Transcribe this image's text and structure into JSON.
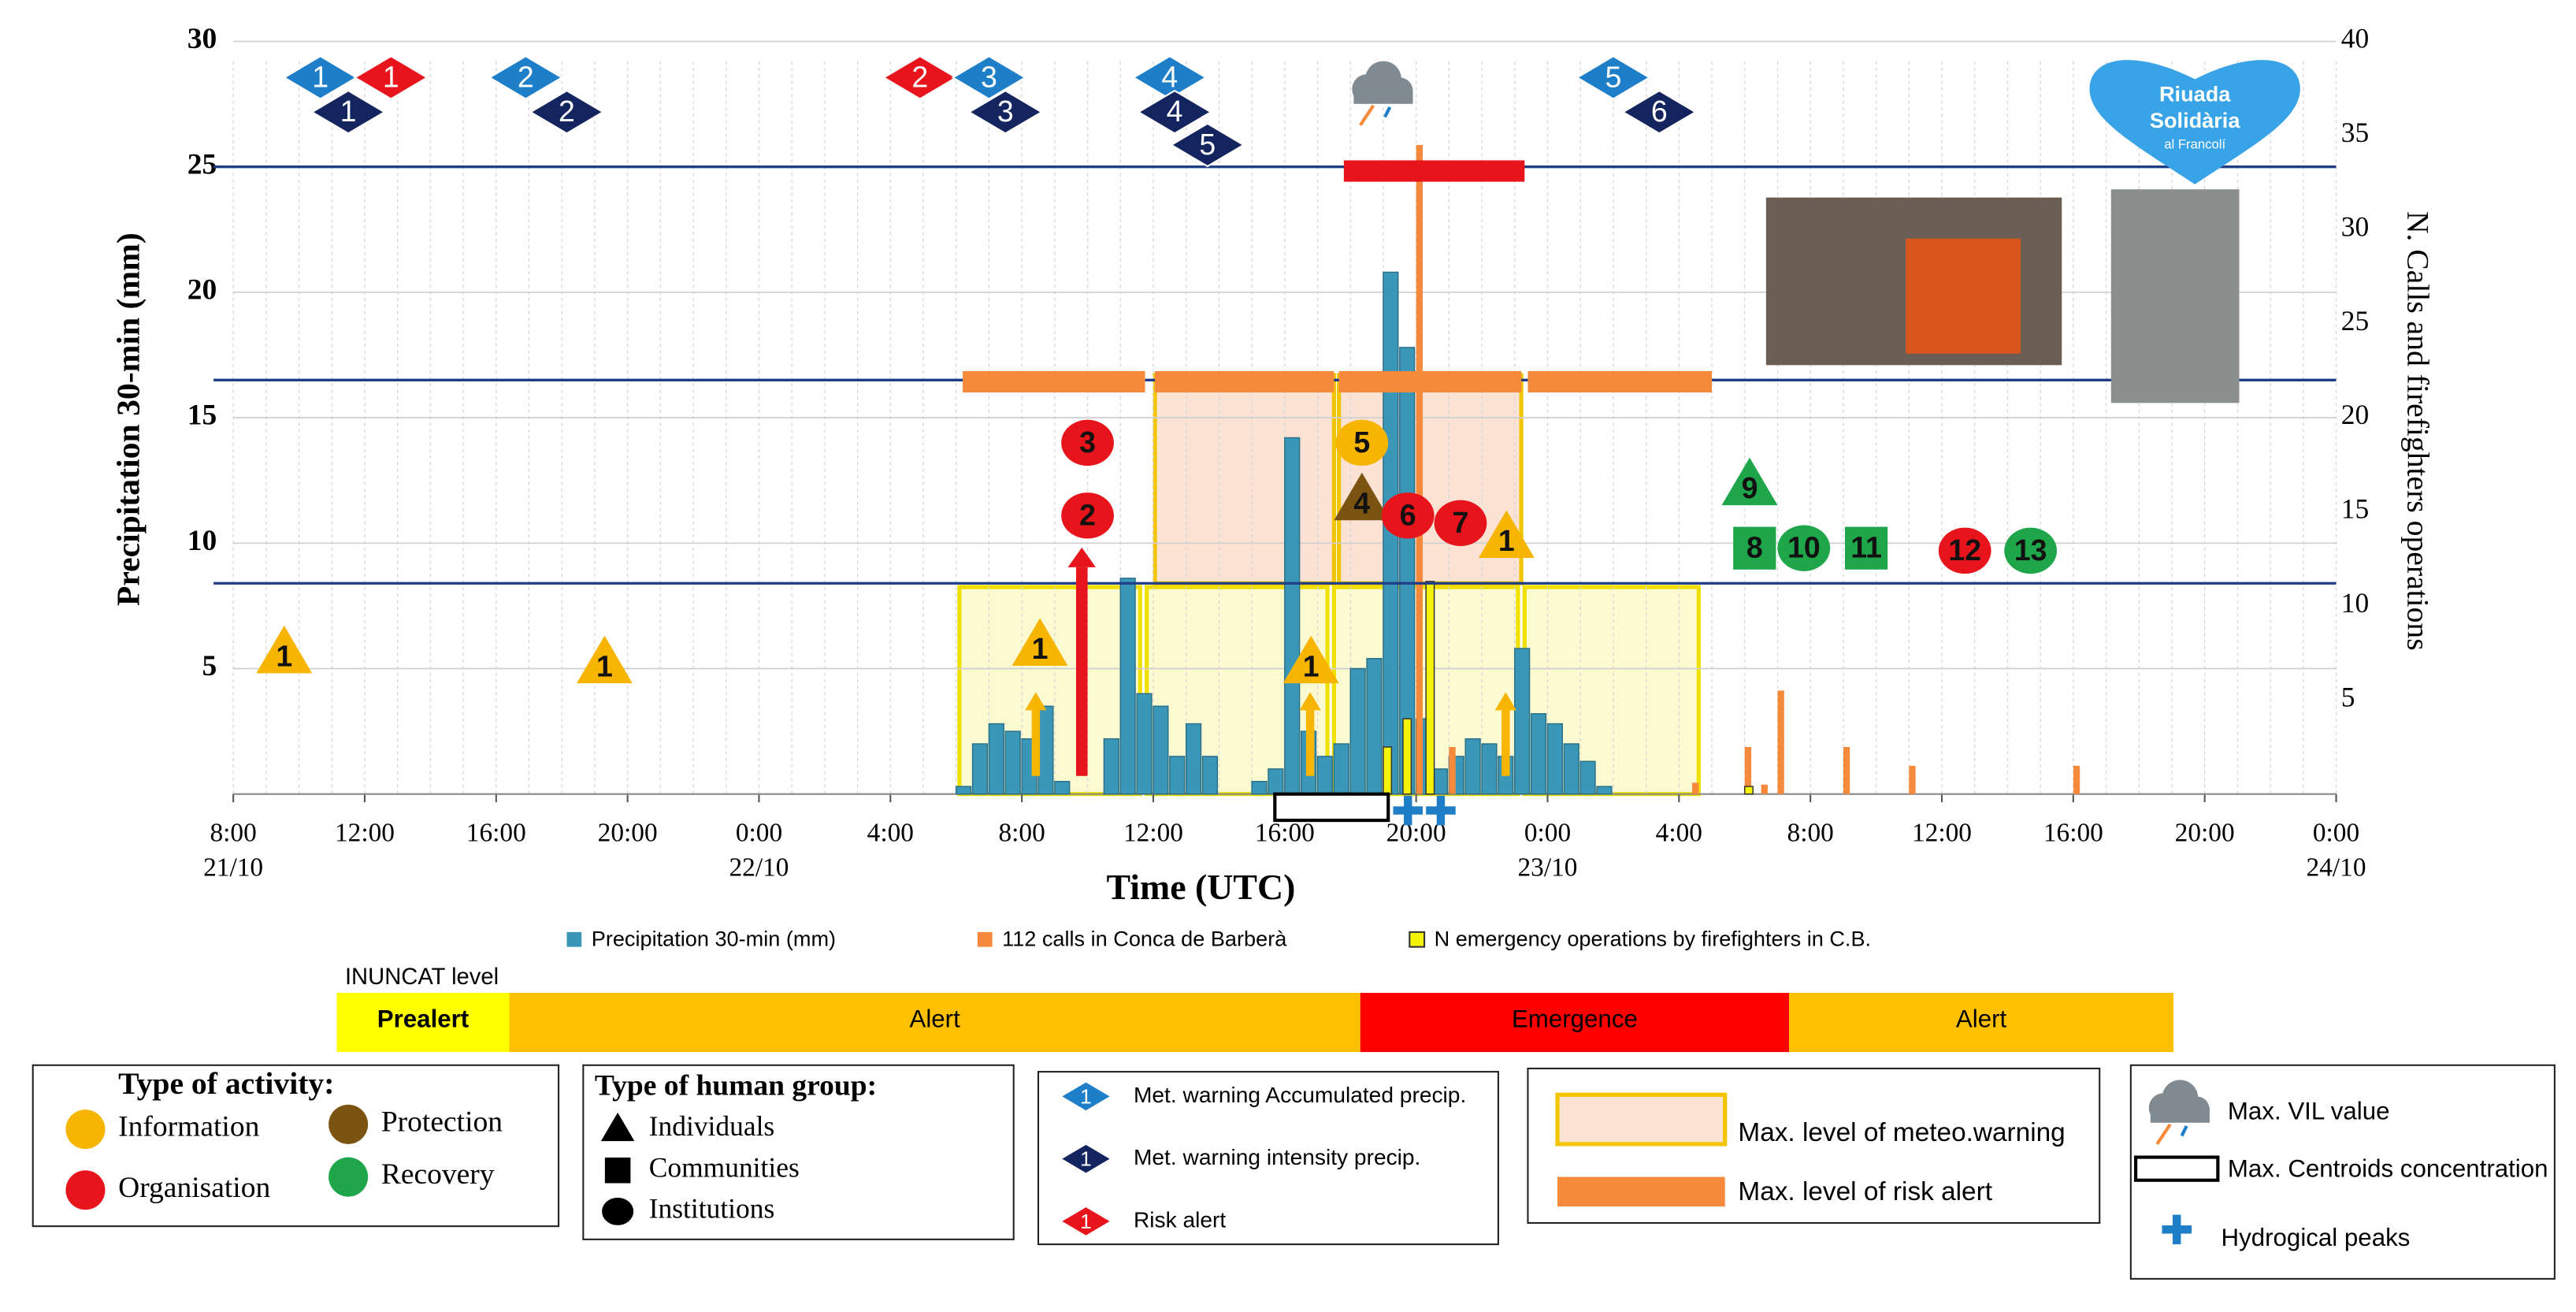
{
  "chart_data": {
    "type": "bar",
    "x_label": "Time (UTC)",
    "y_label": "Precipitation 30-min (mm)",
    "y2_label": "N. Calls and firefighters operations",
    "xlim": [
      0,
      64
    ],
    "xticks": [
      {
        "value": 0,
        "label": "8:00"
      },
      {
        "value": 4,
        "label": "12:00"
      },
      {
        "value": 8,
        "label": "16:00"
      },
      {
        "value": 12,
        "label": "20:00"
      },
      {
        "value": 16,
        "label": "0:00"
      },
      {
        "value": 20,
        "label": "4:00"
      },
      {
        "value": 24,
        "label": "8:00"
      },
      {
        "value": 28,
        "label": "12:00"
      },
      {
        "value": 32,
        "label": "16:00"
      },
      {
        "value": 36,
        "label": "20:00"
      },
      {
        "value": 40,
        "label": "0:00"
      },
      {
        "value": 44,
        "label": "4:00"
      },
      {
        "value": 48,
        "label": "8:00"
      },
      {
        "value": 52,
        "label": "12:00"
      },
      {
        "value": 56,
        "label": "16:00"
      },
      {
        "value": 60,
        "label": "20:00"
      },
      {
        "value": 64,
        "label": "0:00"
      }
    ],
    "x_date_labels": [
      {
        "value": 0,
        "label": "21/10"
      },
      {
        "value": 16,
        "label": "22/10"
      },
      {
        "value": 40,
        "label": "23/10"
      },
      {
        "value": 64,
        "label": "24/10"
      }
    ],
    "x_minor_ticks": [
      0,
      1,
      2,
      3,
      4,
      5,
      6,
      7,
      8,
      9,
      10,
      11,
      12,
      13,
      14,
      15,
      16,
      17,
      18,
      19,
      20,
      21,
      22,
      23,
      24,
      25,
      26,
      27,
      28,
      29,
      30,
      31,
      32,
      33,
      34,
      35,
      36,
      37,
      38,
      39,
      40,
      41,
      42,
      43,
      44,
      45,
      46,
      47,
      48,
      49,
      50,
      51,
      52,
      53,
      54,
      55,
      56,
      57,
      58,
      59,
      60,
      61,
      62,
      63,
      64
    ],
    "ylim": [
      0,
      30
    ],
    "yticks": [
      5,
      10,
      15,
      20,
      25,
      30
    ],
    "y2lim": [
      0,
      40
    ],
    "y2ticks": [
      5,
      10,
      15,
      20,
      25,
      30,
      35,
      40
    ],
    "grid": true,
    "reference_lines": [
      25,
      16.5,
      8.4
    ],
    "reference_color": "#1f3c88",
    "series": [
      {
        "name": "Precipitation 30-min (mm)",
        "color": "#3b97b8",
        "x": [
          22.0,
          22.5,
          23.0,
          23.5,
          24.0,
          24.5,
          25.0,
          26.5,
          27.0,
          27.5,
          28.0,
          28.5,
          29.0,
          29.5,
          31.0,
          31.5,
          32.0,
          32.5,
          33.0,
          33.5,
          34.0,
          34.5,
          35.0,
          35.5,
          36.0,
          36.5,
          37.0,
          37.5,
          38.0,
          38.5,
          39.0,
          39.5,
          40.0,
          40.5,
          41.0,
          41.5
        ],
        "values": [
          0.3,
          2.0,
          2.8,
          2.5,
          2.2,
          3.5,
          0.5,
          2.2,
          8.6,
          4.0,
          3.5,
          1.5,
          2.8,
          1.5,
          0.5,
          1.0,
          14.2,
          2.5,
          1.5,
          2.0,
          5.0,
          5.4,
          20.8,
          17.8,
          3.0,
          1.0,
          1.5,
          2.2,
          2.0,
          1.5,
          5.8,
          3.2,
          2.8,
          2.0,
          1.3,
          0.3
        ]
      },
      {
        "name": "112 calls in Conca de Barberà",
        "color": "#f58a3c",
        "axis": "y2",
        "x": [
          36.0,
          37.0,
          44.4,
          46.0,
          46.5,
          47.0,
          49.0,
          51.0,
          56.0
        ],
        "values": [
          34.5,
          2.5,
          0.6,
          2.5,
          0.5,
          5.5,
          2.5,
          1.5,
          1.5
        ]
      },
      {
        "name": "N emergency operations by firefighters in C.B.",
        "color": "#f5f20a",
        "axis": "y2",
        "x": [
          35.0,
          35.6,
          36.3,
          46.0
        ],
        "values": [
          2.5,
          4.0,
          11.3,
          0.4
        ]
      }
    ],
    "meteo_warning_periods": [
      {
        "start": 22.1,
        "end": 27.6,
        "bottom": 0,
        "top": 8.25,
        "fill": "#fbfad0",
        "stroke": "#efe000"
      },
      {
        "start": 27.8,
        "end": 33.3,
        "bottom": 0,
        "top": 8.25,
        "fill": "#fbfad0",
        "stroke": "#efe000"
      },
      {
        "start": 33.5,
        "end": 39.1,
        "bottom": 0,
        "top": 8.25,
        "fill": "#fbfad0",
        "stroke": "#efe000"
      },
      {
        "start": 39.3,
        "end": 44.6,
        "bottom": 0,
        "top": 8.25,
        "fill": "#fbfad0",
        "stroke": "#efe000"
      },
      {
        "start": 28.05,
        "end": 33.5,
        "bottom": 8.4,
        "top": 16.7,
        "fill": "#fbe2d2",
        "stroke": "#f2c500"
      },
      {
        "start": 33.65,
        "end": 39.2,
        "bottom": 8.4,
        "top": 16.7,
        "fill": "#fbe2d2",
        "stroke": "#f2c500"
      }
    ],
    "risk_alert_periods": [
      {
        "start": 22.2,
        "end": 27.75,
        "y": 16.4,
        "color": "#f58a3c"
      },
      {
        "start": 28.05,
        "end": 33.5,
        "y": 16.4,
        "color": "#f58a3c"
      },
      {
        "start": 33.65,
        "end": 39.2,
        "y": 16.4,
        "color": "#f58a3c"
      },
      {
        "start": 39.4,
        "end": 45.0,
        "y": 16.4,
        "color": "#f58a3c"
      },
      {
        "start": 33.8,
        "end": 39.3,
        "y": 24.8,
        "color": "#e8141c"
      }
    ],
    "warning_colors": {
      "accumulated": "#1e7fc8",
      "intensity": "#14245e",
      "risk": "#e8141c"
    },
    "warnings": [
      {
        "kind": "accumulated",
        "label": "1",
        "x": 2.65
      },
      {
        "kind": "intensity",
        "label": "1",
        "x": 3.5
      },
      {
        "kind": "risk",
        "label": "1",
        "x": 4.8
      },
      {
        "kind": "accumulated",
        "label": "2",
        "x": 8.9
      },
      {
        "kind": "intensity",
        "label": "2",
        "x": 10.15
      },
      {
        "kind": "risk",
        "label": "2",
        "x": 20.9
      },
      {
        "kind": "accumulated",
        "label": "3",
        "x": 23.0
      },
      {
        "kind": "intensity",
        "label": "3",
        "x": 23.5
      },
      {
        "kind": "accumulated",
        "label": "4",
        "x": 28.5
      },
      {
        "kind": "intensity",
        "label": "4",
        "x": 28.65
      },
      {
        "kind": "intensity",
        "label": "5",
        "x": 29.65
      },
      {
        "kind": "accumulated",
        "label": "5",
        "x": 42.0
      },
      {
        "kind": "intensity",
        "label": "6",
        "x": 43.4
      }
    ],
    "activity_colors": {
      "information": "#f7b500",
      "organisation": "#e8141c",
      "protection": "#7a5410",
      "recovery": "#1fa64a"
    },
    "activities": [
      {
        "label": "1",
        "shape": "triangle",
        "activity": "information",
        "x": 1.55,
        "y": 5.6
      },
      {
        "label": "1",
        "shape": "triangle",
        "activity": "information",
        "x": 11.3,
        "y": 5.2
      },
      {
        "label": "1",
        "shape": "triangle",
        "activity": "information",
        "x": 24.55,
        "y": 5.9
      },
      {
        "label": "3",
        "shape": "circle",
        "activity": "organisation",
        "x": 26.0,
        "y": 14.0
      },
      {
        "label": "2",
        "shape": "circle",
        "activity": "organisation",
        "x": 26.0,
        "y": 11.1
      },
      {
        "label": "1",
        "shape": "triangle",
        "activity": "information",
        "x": 32.8,
        "y": 5.2
      },
      {
        "label": "5",
        "shape": "circle",
        "activity": "information",
        "x": 34.35,
        "y": 14.0
      },
      {
        "label": "4",
        "shape": "triangle",
        "activity": "protection",
        "x": 34.35,
        "y": 11.7
      },
      {
        "label": "6",
        "shape": "circle",
        "activity": "organisation",
        "x": 35.75,
        "y": 11.1
      },
      {
        "label": "7",
        "shape": "circle",
        "activity": "organisation",
        "x": 37.35,
        "y": 10.8
      },
      {
        "label": "1",
        "shape": "triangle",
        "activity": "information",
        "x": 38.75,
        "y": 10.2
      },
      {
        "label": "9",
        "shape": "triangle",
        "activity": "recovery",
        "x": 46.15,
        "y": 12.3
      },
      {
        "label": "8",
        "shape": "square",
        "activity": "recovery",
        "x": 46.3,
        "y": 9.8
      },
      {
        "label": "10",
        "shape": "circle",
        "activity": "recovery",
        "x": 47.8,
        "y": 9.8
      },
      {
        "label": "11",
        "shape": "square",
        "activity": "recovery",
        "x": 49.7,
        "y": 9.8
      },
      {
        "label": "12",
        "shape": "circle",
        "activity": "organisation",
        "x": 52.7,
        "y": 9.7
      },
      {
        "label": "13",
        "shape": "circle",
        "activity": "recovery",
        "x": 54.7,
        "y": 9.7
      }
    ],
    "vil_max": {
      "x": 34.9
    },
    "centroid_period": [
      31.7,
      35.15
    ],
    "hydro_peaks": [
      35.75,
      36.75
    ],
    "inuncat": {
      "title": "INUNCAT level",
      "levels": [
        {
          "label": "Prealert",
          "start": 3.15,
          "end": 8.4,
          "color": "#ffff00"
        },
        {
          "label": "Alert",
          "start": 8.4,
          "end": 34.3,
          "color": "#ffc000"
        },
        {
          "label": "Emergence",
          "start": 34.3,
          "end": 47.35,
          "color": "#ff0000"
        },
        {
          "label": "Alert",
          "start": 47.35,
          "end": 59.05,
          "color": "#ffc000"
        }
      ]
    },
    "legend_activity": {
      "title": "Type of activity:",
      "items": [
        {
          "label": "Information",
          "activity": "information"
        },
        {
          "label": "Protection",
          "activity": "protection"
        },
        {
          "label": "Organisation",
          "activity": "organisation"
        },
        {
          "label": "Recovery",
          "activity": "recovery"
        }
      ]
    },
    "legend_group": {
      "title": "Type of human group:",
      "items": [
        {
          "label": "Individuals",
          "shape": "triangle"
        },
        {
          "label": "Communities",
          "shape": "square"
        },
        {
          "label": "Institutions",
          "shape": "circle"
        }
      ]
    },
    "legend_warning": {
      "items": [
        {
          "label": "Met. warning Accumulated precip.",
          "kind": "accumulated",
          "icon_label": "1"
        },
        {
          "label": "Met. warning intensity precip.",
          "kind": "intensity",
          "icon_label": "1"
        },
        {
          "label": "Risk alert",
          "kind": "risk",
          "icon_label": "1"
        }
      ]
    },
    "legend_levels": {
      "items": [
        {
          "label": "Max. level of meteo.warning"
        },
        {
          "label": "Max. level of risk alert"
        }
      ]
    },
    "legend_other": {
      "items": [
        {
          "label": "Max. VIL value"
        },
        {
          "label": "Max. Centroids concentration"
        },
        {
          "label": "Hydrogical peaks"
        }
      ]
    },
    "logo": {
      "line1": "Riuada",
      "line2": "Solidària",
      "line3": "al Francolí"
    }
  }
}
